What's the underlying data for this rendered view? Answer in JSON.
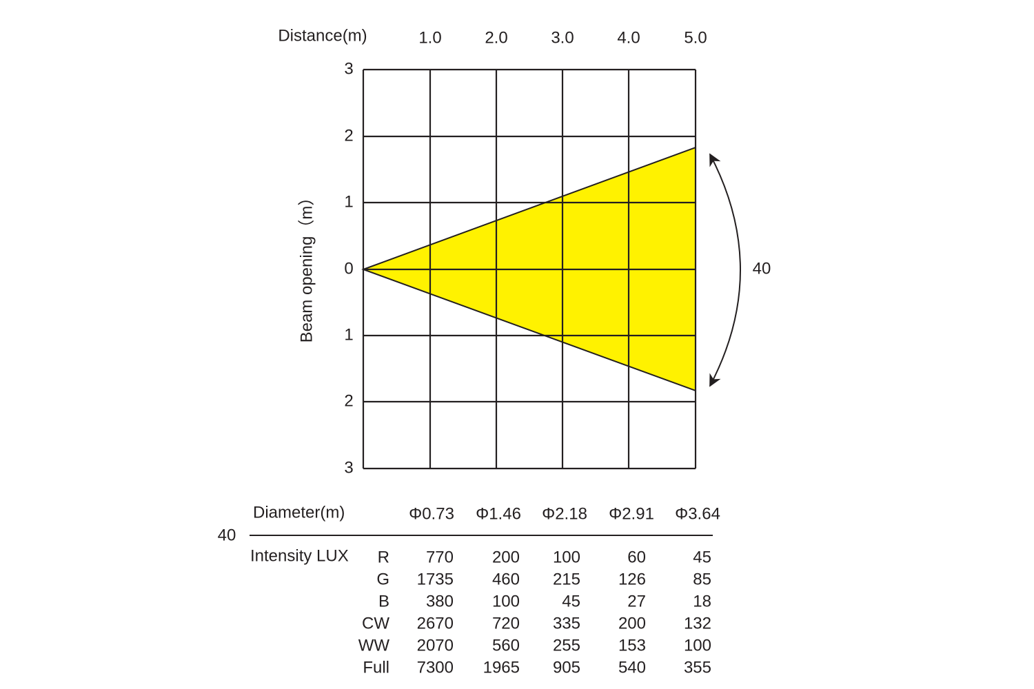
{
  "diagram": {
    "distance_label": "Distance(m)",
    "distances": [
      "1.0",
      "2.0",
      "3.0",
      "4.0",
      "5.0"
    ],
    "beam_label": "Beam opening（m）",
    "beam_ticks": [
      "3",
      "2",
      "1",
      "0",
      "1",
      "2",
      "3"
    ],
    "angle": "40"
  },
  "table": {
    "angle": "40",
    "diameter_label": "Diameter(m)",
    "diameters": [
      "Φ0.73",
      "Φ1.46",
      "Φ2.18",
      "Φ2.91",
      "Φ3.64"
    ],
    "intensity_label": "Intensity LUX",
    "rows": [
      [
        "R",
        "770",
        "200",
        "100",
        "60",
        "45"
      ],
      [
        "G",
        "1735",
        "460",
        "215",
        "126",
        "85"
      ],
      [
        "B",
        "380",
        "100",
        "45",
        "27",
        "18"
      ],
      [
        "CW",
        "2670",
        "720",
        "335",
        "200",
        "132"
      ],
      [
        "WW",
        "2070",
        "560",
        "255",
        "153",
        "100"
      ],
      [
        "Full",
        "7300",
        "1965",
        "905",
        "540",
        "355"
      ]
    ]
  }
}
